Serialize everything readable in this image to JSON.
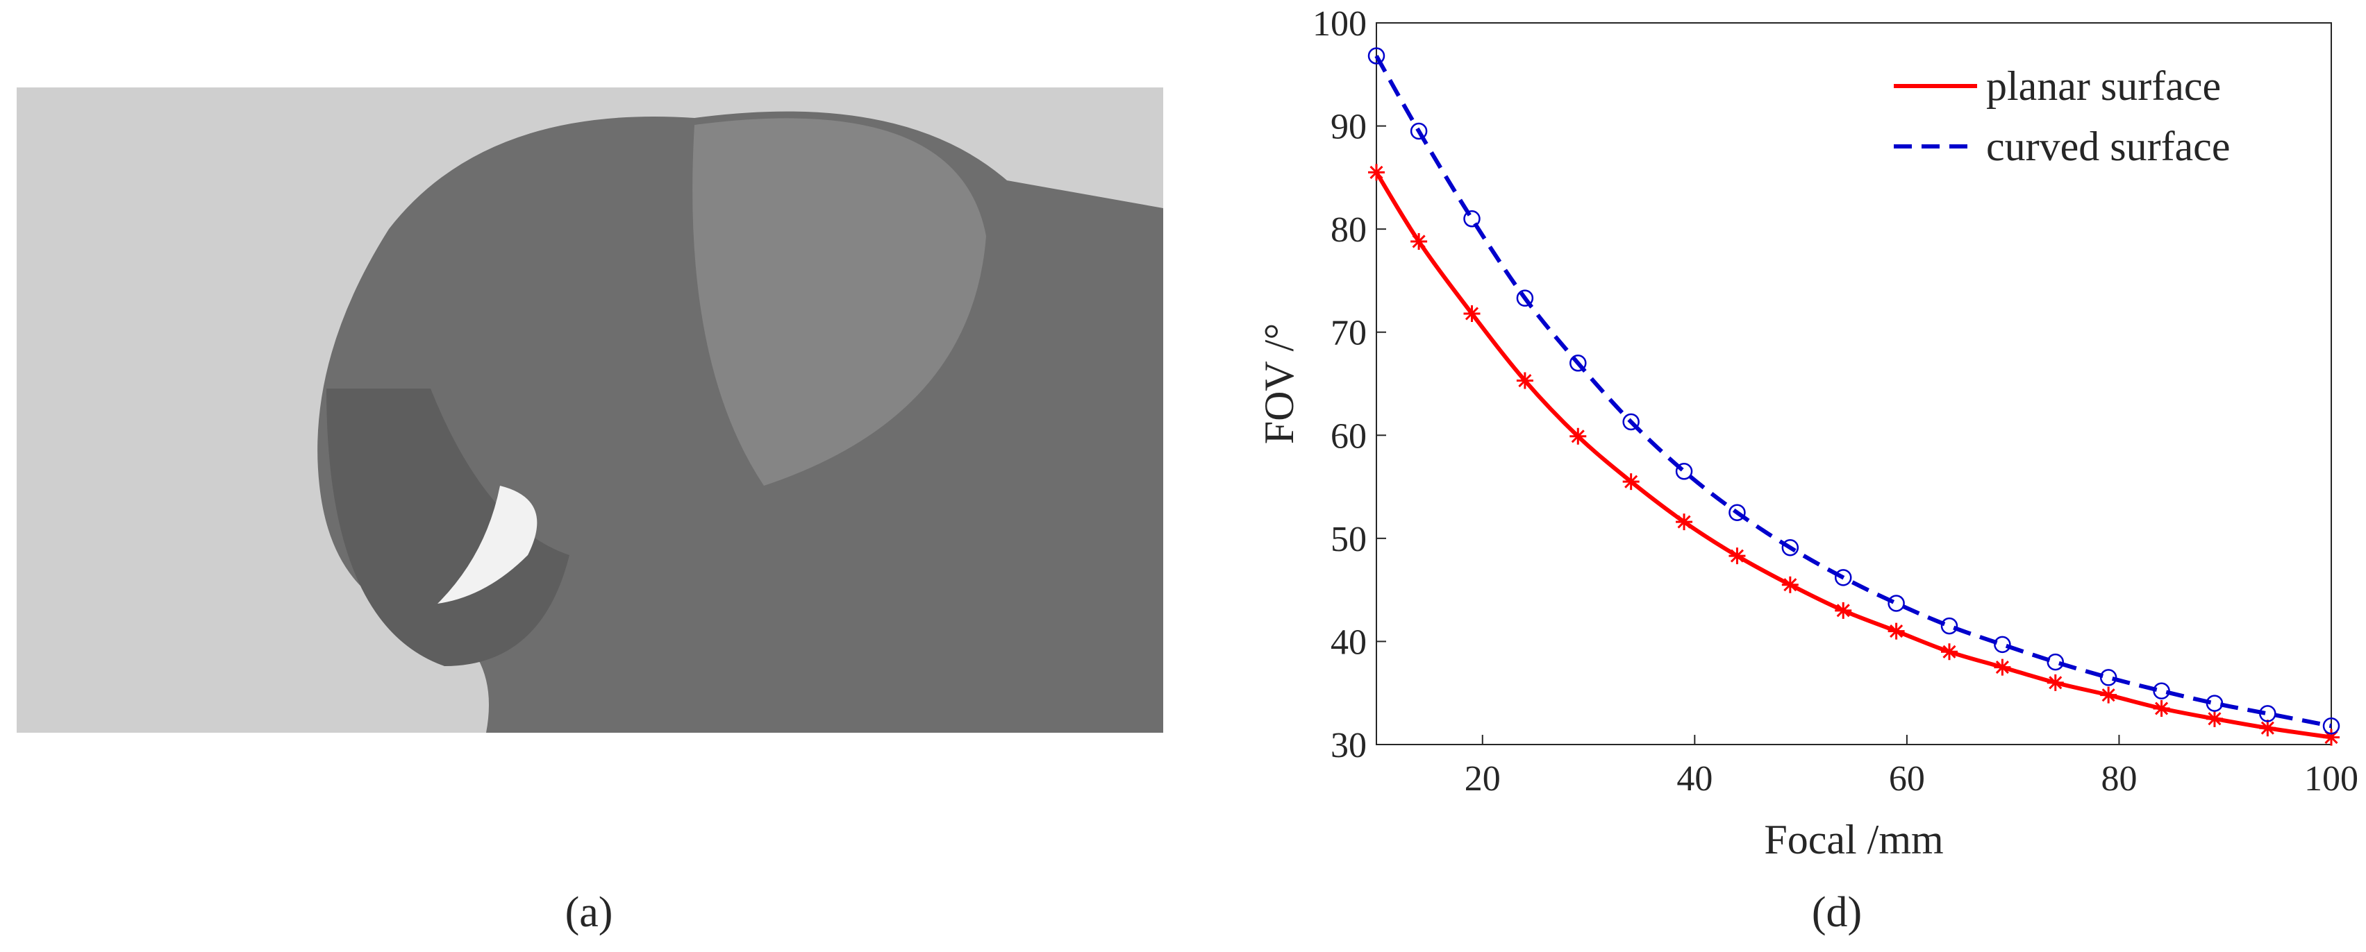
{
  "panels": [
    {
      "label": "(a)"
    },
    {
      "label": "(d)"
    }
  ],
  "chart_data": {
    "type": "line",
    "xlabel": "Focal /mm",
    "ylabel": "FOV /°",
    "x": [
      10,
      14,
      19,
      24,
      29,
      34,
      39,
      44,
      49,
      54,
      59,
      64,
      69,
      74,
      79,
      84,
      89,
      94,
      100
    ],
    "series": [
      {
        "name": "planar surface",
        "color": "#ff0000",
        "dash": "solid",
        "marker": "star",
        "values": [
          85.5,
          78.8,
          71.8,
          65.3,
          59.9,
          55.5,
          51.6,
          48.3,
          45.5,
          43.0,
          41.0,
          39.0,
          37.5,
          36.0,
          34.8,
          33.5,
          32.5,
          31.6,
          30.7
        ]
      },
      {
        "name": "curved surface",
        "color": "#0000cc",
        "dash": "dashed",
        "marker": "circle",
        "values": [
          96.8,
          89.5,
          81.0,
          73.3,
          67.0,
          61.3,
          56.5,
          52.5,
          49.1,
          46.2,
          43.7,
          41.5,
          39.7,
          38.0,
          36.5,
          35.2,
          34.0,
          33.0,
          31.8
        ]
      }
    ],
    "xlim": [
      10,
      100
    ],
    "ylim": [
      30,
      100
    ],
    "xticks": [
      20,
      40,
      60,
      80,
      100
    ],
    "yticks": [
      30,
      40,
      50,
      60,
      70,
      80,
      90,
      100
    ],
    "legend": "top-right"
  }
}
